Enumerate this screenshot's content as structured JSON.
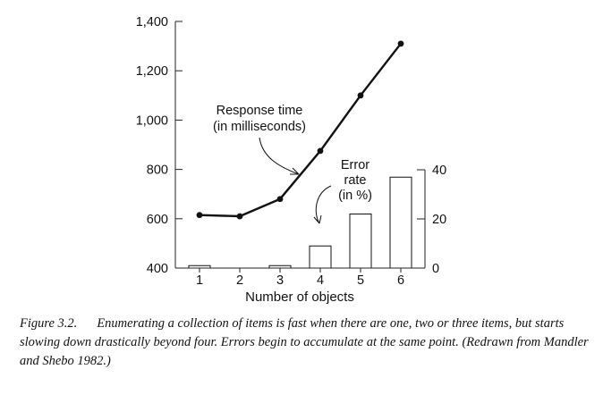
{
  "chart_data": {
    "type": "line",
    "categories": [
      "1",
      "2",
      "3",
      "4",
      "5",
      "6"
    ],
    "xlabel": "Number of objects",
    "series": [
      {
        "name": "Response time (in milliseconds)",
        "type": "line",
        "axis": "left",
        "values": [
          615,
          610,
          680,
          875,
          1100,
          1310
        ]
      },
      {
        "name": "Error rate (in %)",
        "type": "bar",
        "axis": "right",
        "values": [
          1,
          0,
          1,
          9,
          22,
          37
        ]
      }
    ],
    "left_axis": {
      "ylim": [
        400,
        1400
      ],
      "ticks": [
        "400",
        "600",
        "800",
        "1,000",
        "1,200",
        "1,400"
      ]
    },
    "right_axis": {
      "ylim": [
        0,
        40
      ],
      "ticks": [
        "0",
        "20",
        "40"
      ]
    },
    "annotations": {
      "response_lines": [
        "Response time",
        "(in milliseconds)"
      ],
      "error_lines": [
        "Error",
        "rate",
        "(in %)"
      ]
    }
  },
  "caption": {
    "label": "Figure 3.2.",
    "text": "Enumerating a collection of items is fast when there are one, two or three items, but starts slowing down drastically beyond four. Errors begin to accumulate at the same point. (Redrawn from Mandler and Shebo 1982.)"
  }
}
